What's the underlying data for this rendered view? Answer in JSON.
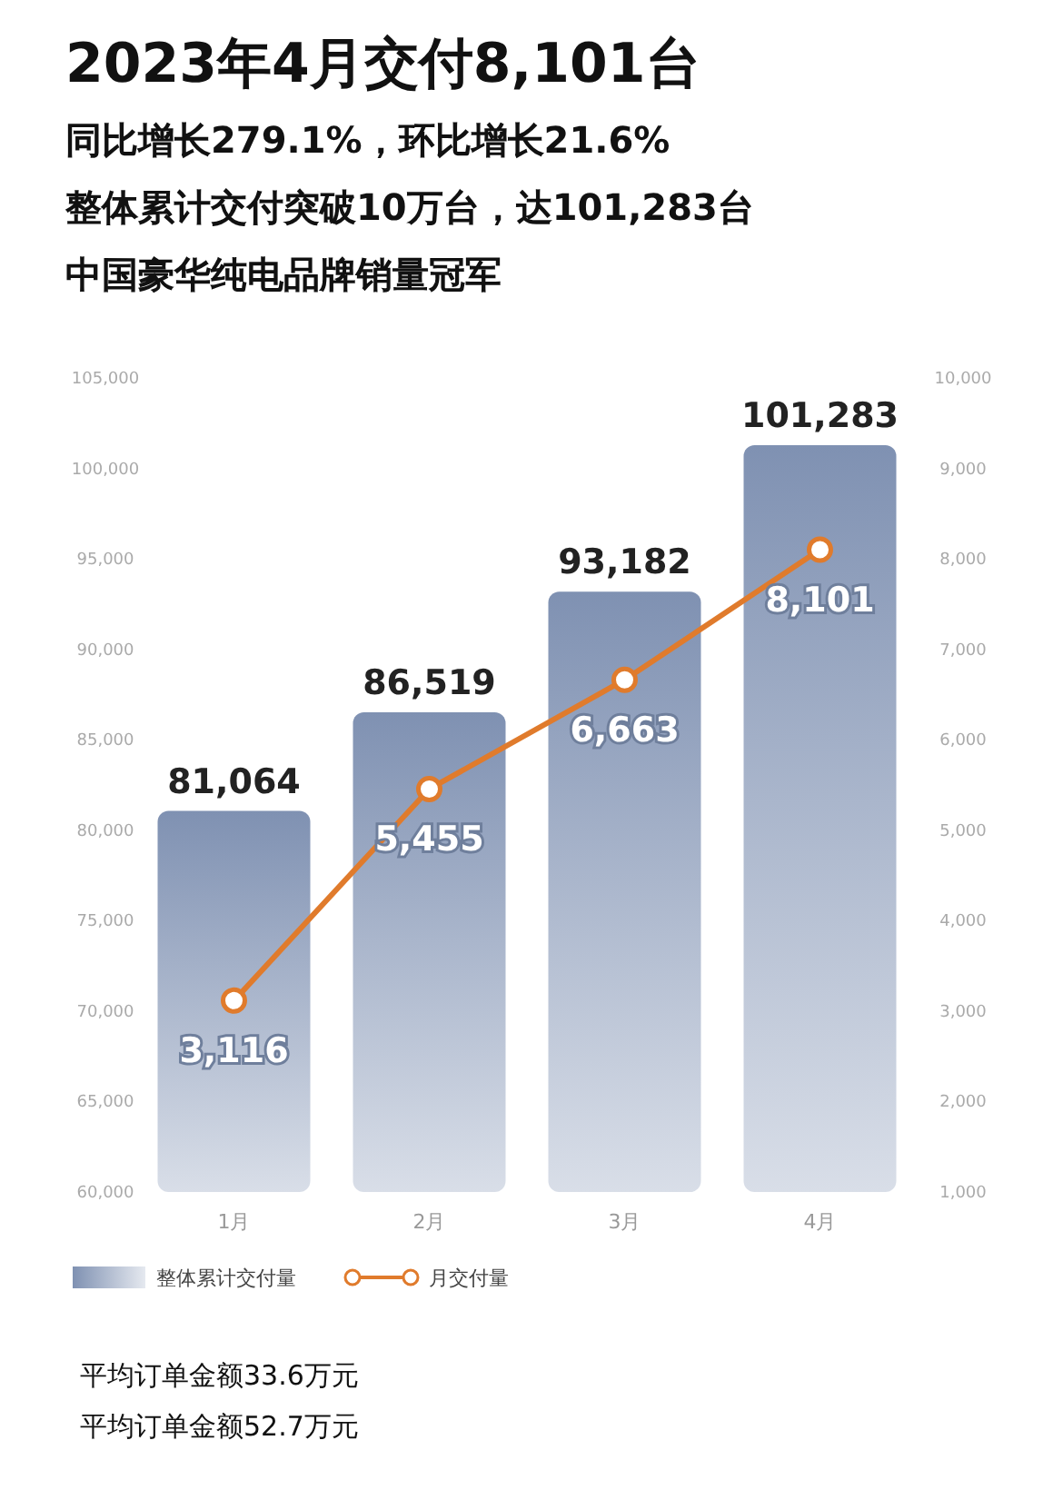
{
  "chart_data": {
    "type": "bar",
    "title": "2023年4月交付8,101台",
    "subtitle": "同比增长279.1%，环比增长21.6%",
    "categories": [
      "1月",
      "2月",
      "3月",
      "4月"
    ],
    "series": [
      {
        "name": "整体累计交付量",
        "color": "#7f91b2",
        "values": [
          81064,
          86519,
          93182,
          101283
        ],
        "value_labels": [
          "81,064",
          "86,519",
          "93,182",
          "101,283"
        ]
      },
      {
        "name": "月交付量",
        "type": "line",
        "axis": "y2",
        "color": "#e07b2c",
        "marker": "circle",
        "values": [
          3116,
          5455,
          6663,
          8101
        ],
        "value_labels": [
          "3,116",
          "5,455",
          "6,663",
          "8,101"
        ]
      }
    ],
    "ylim": [
      60000,
      105000
    ],
    "yticks": [
      {
        "value": 60000,
        "label": "60,000"
      },
      {
        "value": 65000,
        "label": "65,000"
      },
      {
        "value": 70000,
        "label": "70,000"
      },
      {
        "value": 75000,
        "label": "75,000"
      },
      {
        "value": 80000,
        "label": "80,000"
      },
      {
        "value": 85000,
        "label": "85,000"
      },
      {
        "value": 90000,
        "label": "90,000"
      },
      {
        "value": 95000,
        "label": "95,000"
      },
      {
        "value": 100000,
        "label": "100,000"
      },
      {
        "value": 105000,
        "label": "105,000"
      }
    ],
    "y2lim": [
      1000,
      10000
    ],
    "y2ticks": [
      {
        "value": 1000,
        "label": "1,000"
      },
      {
        "value": 2000,
        "label": "2,000"
      },
      {
        "value": 3000,
        "label": "3,000"
      },
      {
        "value": 4000,
        "label": "4,000"
      },
      {
        "value": 5000,
        "label": "5,000"
      },
      {
        "value": 6000,
        "label": "6,000"
      },
      {
        "value": 7000,
        "label": "7,000"
      },
      {
        "value": 8000,
        "label": "8,000"
      },
      {
        "value": 9000,
        "label": "9,000"
      },
      {
        "value": 10000,
        "label": "10,000"
      }
    ],
    "legend": "bottom",
    "annotations": [
      "整体累计交付突破10万台，达101,283台",
      "中国豪华纯电品牌销量冠军",
      "平均订单金额33.6万元",
      "平均订单金额52.7万元"
    ]
  }
}
